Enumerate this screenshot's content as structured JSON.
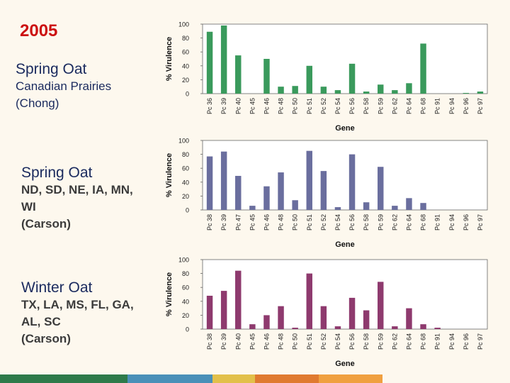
{
  "year": "2005",
  "panels": [
    {
      "title": "Spring Oat",
      "sub1": "Canadian Prairies",
      "sub2": "(Chong)",
      "sub3": ""
    },
    {
      "title": "Spring Oat",
      "sub1": "ND, SD, NE, IA, MN,",
      "sub2": "WI",
      "sub3": "(Carson)"
    },
    {
      "title": "Winter Oat",
      "sub1": "TX, LA, MS, FL, GA,",
      "sub2": "AL, SC",
      "sub3": "(Carson)"
    }
  ],
  "chart_data": [
    {
      "type": "bar",
      "xlabel": "Gene",
      "ylabel": "% Virulence",
      "ylim": [
        0,
        100
      ],
      "yticks": [
        0,
        20,
        40,
        60,
        80,
        100
      ],
      "color": "#3a9a5c",
      "categories": [
        "Pc 36",
        "Pc 39",
        "Pc 40",
        "Pc 45",
        "Pc 46",
        "Pc 48",
        "Pc 50",
        "Pc 51",
        "Pc 52",
        "Pc 54",
        "Pc 56",
        "Pc 58",
        "Pc 59",
        "Pc 62",
        "Pc 64",
        "Pc 68",
        "Pc 91",
        "Pc 94",
        "Pc 96",
        "Pc 97"
      ],
      "values": [
        89,
        98,
        55,
        0,
        50,
        10,
        11,
        40,
        10,
        5,
        43,
        3,
        13,
        5,
        15,
        72,
        0,
        0,
        1,
        3
      ]
    },
    {
      "type": "bar",
      "xlabel": "Gene",
      "ylabel": "% Virulence",
      "ylim": [
        0,
        100
      ],
      "yticks": [
        0,
        20,
        40,
        60,
        80,
        100
      ],
      "color": "#6a6e9e",
      "categories": [
        "Pc 38",
        "Pc 39",
        "Pc 47",
        "Pc 45",
        "Pc 46",
        "Pc 48",
        "Pc 50",
        "Pc 51",
        "Pc 52",
        "Pc 54",
        "Pc 56",
        "Pc 58",
        "Pc 59",
        "Pc 62",
        "Pc 64",
        "Pc 68",
        "Pc 91",
        "Pc 94",
        "Pc 96",
        "Pc 97"
      ],
      "values": [
        77,
        84,
        49,
        6,
        34,
        54,
        14,
        85,
        56,
        4,
        80,
        11,
        62,
        6,
        17,
        10,
        0,
        0,
        0,
        0
      ]
    },
    {
      "type": "bar",
      "xlabel": "Gene",
      "ylabel": "% Virulence",
      "ylim": [
        0,
        100
      ],
      "yticks": [
        0,
        20,
        40,
        60,
        80,
        100
      ],
      "color": "#8e3a6e",
      "categories": [
        "Pc 38",
        "Pc 39",
        "Pc 40",
        "Pc 45",
        "Pc 46",
        "Pc 48",
        "Pc 50",
        "Pc 51",
        "Pc 52",
        "Pc 54",
        "Pc 56",
        "Pc 58",
        "Pc 59",
        "Pc 62",
        "Pc 64",
        "Pc 68",
        "Pc 91",
        "Pc 94",
        "Pc 96",
        "Pc 97"
      ],
      "values": [
        48,
        55,
        84,
        7,
        20,
        33,
        2,
        80,
        33,
        4,
        45,
        27,
        68,
        4,
        30,
        7,
        2,
        0,
        0,
        0
      ]
    }
  ],
  "bottom_bar_colors": [
    "#2e7a4a",
    "#4a90b8",
    "#e2c04a",
    "#e07a30",
    "#f0a040"
  ]
}
